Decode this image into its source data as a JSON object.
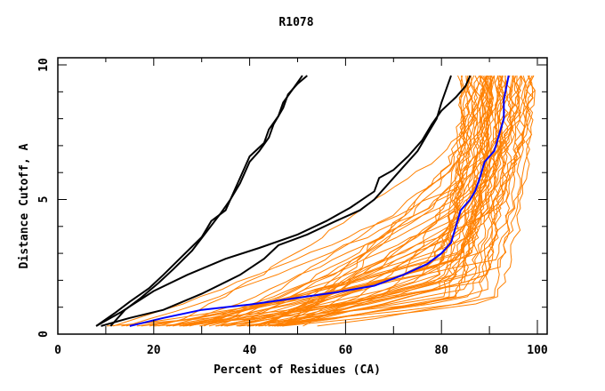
{
  "chart_data": {
    "type": "line",
    "title": "R1078",
    "xlabel": "Percent of Residues (CA)",
    "ylabel": "Distance Cutoff, A",
    "xlim": [
      0,
      100
    ],
    "ylim": [
      0,
      10
    ],
    "x_ticks": [
      0,
      20,
      40,
      60,
      80,
      100
    ],
    "y_ticks": [
      0,
      5,
      10
    ],
    "x_minor_step": 10,
    "y_minor_step": 1,
    "grid": false,
    "legend": "none",
    "colors": {
      "highlight": "#0000ff",
      "reference": "#000000",
      "others": "#ff8000"
    },
    "series": [
      {
        "name": "reference-1",
        "role": "reference",
        "points": [
          [
            8,
            0.3
          ],
          [
            12,
            0.8
          ],
          [
            15,
            1.2
          ],
          [
            19,
            1.7
          ],
          [
            22,
            2.2
          ],
          [
            26,
            2.9
          ],
          [
            30,
            3.6
          ],
          [
            32,
            4.2
          ],
          [
            35,
            4.6
          ],
          [
            37,
            5.4
          ],
          [
            39,
            6.2
          ],
          [
            40,
            6.6
          ],
          [
            43,
            7.1
          ],
          [
            44,
            7.6
          ],
          [
            46,
            8.1
          ],
          [
            47,
            8.6
          ],
          [
            49,
            9.1
          ],
          [
            51,
            9.6
          ]
        ]
      },
      {
        "name": "reference-2",
        "role": "reference",
        "points": [
          [
            11,
            0.3
          ],
          [
            14,
            0.9
          ],
          [
            17,
            1.3
          ],
          [
            21,
            1.9
          ],
          [
            24,
            2.4
          ],
          [
            28,
            3.1
          ],
          [
            31,
            3.8
          ],
          [
            34,
            4.5
          ],
          [
            36,
            5.0
          ],
          [
            38,
            5.6
          ],
          [
            40,
            6.4
          ],
          [
            42,
            6.8
          ],
          [
            44,
            7.3
          ],
          [
            45,
            7.8
          ],
          [
            47,
            8.4
          ],
          [
            48,
            8.9
          ],
          [
            50,
            9.3
          ],
          [
            52,
            9.6
          ]
        ]
      },
      {
        "name": "reference-3",
        "role": "reference",
        "points": [
          [
            8,
            0.3
          ],
          [
            13,
            0.8
          ],
          [
            20,
            1.6
          ],
          [
            27,
            2.2
          ],
          [
            35,
            2.8
          ],
          [
            42,
            3.2
          ],
          [
            50,
            3.7
          ],
          [
            56,
            4.2
          ],
          [
            61,
            4.7
          ],
          [
            66,
            5.3
          ],
          [
            67,
            5.8
          ],
          [
            70,
            6.1
          ],
          [
            73,
            6.6
          ],
          [
            76,
            7.2
          ],
          [
            78,
            7.8
          ],
          [
            80,
            8.3
          ],
          [
            83,
            8.8
          ],
          [
            85,
            9.2
          ],
          [
            86,
            9.6
          ]
        ]
      },
      {
        "name": "reference-4",
        "role": "reference",
        "points": [
          [
            9,
            0.3
          ],
          [
            15,
            0.6
          ],
          [
            22,
            0.9
          ],
          [
            30,
            1.5
          ],
          [
            38,
            2.2
          ],
          [
            43,
            2.8
          ],
          [
            46,
            3.3
          ],
          [
            52,
            3.7
          ],
          [
            58,
            4.2
          ],
          [
            63,
            4.6
          ],
          [
            66,
            5.0
          ],
          [
            69,
            5.6
          ],
          [
            72,
            6.2
          ],
          [
            75,
            6.8
          ],
          [
            77,
            7.4
          ],
          [
            79,
            8.0
          ],
          [
            80,
            8.6
          ],
          [
            81,
            9.1
          ],
          [
            82,
            9.6
          ]
        ]
      },
      {
        "name": "highlight",
        "role": "highlight",
        "points": [
          [
            15,
            0.3
          ],
          [
            22,
            0.6
          ],
          [
            30,
            0.9
          ],
          [
            40,
            1.1
          ],
          [
            50,
            1.35
          ],
          [
            58,
            1.55
          ],
          [
            66,
            1.8
          ],
          [
            72,
            2.2
          ],
          [
            77,
            2.6
          ],
          [
            80,
            3.0
          ],
          [
            82,
            3.4
          ],
          [
            83,
            4.0
          ],
          [
            84,
            4.6
          ],
          [
            86,
            5.0
          ],
          [
            87,
            5.3
          ],
          [
            88,
            5.8
          ],
          [
            89,
            6.4
          ],
          [
            91,
            6.8
          ],
          [
            92,
            7.4
          ],
          [
            93,
            8.0
          ],
          [
            93,
            8.7
          ],
          [
            94,
            9.6
          ]
        ]
      }
    ],
    "others_description": "~60 orange model curves forming a dense bundle from ~10-50% at 0.3 A, saturating between ~85-99% at 9.6 A"
  }
}
